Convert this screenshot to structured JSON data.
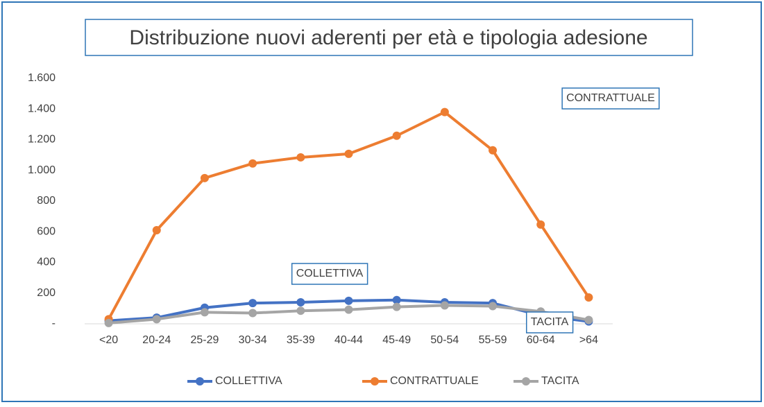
{
  "chart_data": {
    "type": "line",
    "title": "Distribuzione nuovi aderenti per età e tipologia adesione",
    "categories": [
      "<20",
      "20-24",
      "25-29",
      "30-34",
      "35-39",
      "40-44",
      "45-49",
      "50-54",
      "55-59",
      "60-64",
      ">64"
    ],
    "series": [
      {
        "name": "COLLETTIVA",
        "color": "#4472c4",
        "values": [
          20,
          40,
          105,
          135,
          140,
          150,
          155,
          140,
          135,
          55,
          15
        ]
      },
      {
        "name": "CONTRATTUALE",
        "color": "#ed7d31",
        "values": [
          30,
          610,
          950,
          1045,
          1085,
          1108,
          1226,
          1380,
          1131,
          647,
          172
        ]
      },
      {
        "name": "TACITA",
        "color": "#a5a5a5",
        "values": [
          5,
          30,
          75,
          70,
          85,
          92,
          110,
          120,
          115,
          80,
          25
        ]
      }
    ],
    "annotations": [
      "CONTRATTUALE",
      "COLLETTIVA",
      "TACITA"
    ],
    "ylim": [
      0,
      1600
    ],
    "yticks": [
      {
        "value": 0,
        "label": "-"
      },
      200,
      400,
      600,
      800,
      {
        "value": 1000,
        "label": "1.000"
      },
      {
        "value": 1200,
        "label": "1.200"
      },
      {
        "value": 1400,
        "label": "1.400"
      },
      {
        "value": 1600,
        "label": "1.600"
      }
    ],
    "legend": "bottom"
  }
}
